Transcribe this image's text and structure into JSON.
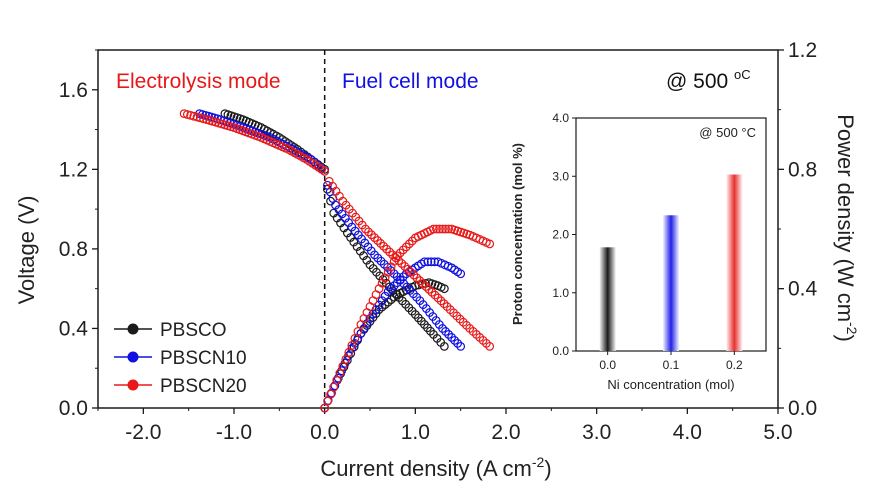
{
  "chart_data": [
    {
      "type": "line",
      "xlabel": "Current density (A cm",
      "xlabel_sup": "-2",
      "xlabel_end": ")",
      "ylabel": "Voltage (V)",
      "y2label": "Power density (W cm",
      "y2label_sup": "-2",
      "y2label_end": ")",
      "xlim": [
        -2.5,
        5.0
      ],
      "ylim": [
        0.0,
        1.8
      ],
      "y2lim": [
        0.0,
        1.2
      ],
      "x_ticks": [
        "-2.0",
        "-1.0",
        "0.0",
        "1.0",
        "2.0",
        "3.0",
        "4.0",
        "5.0"
      ],
      "y_ticks": [
        "0.0",
        "0.4",
        "0.8",
        "1.2",
        "1.6"
      ],
      "y2_ticks": [
        "0.0",
        "0.4",
        "0.8",
        "1.2"
      ],
      "annotations": {
        "left_mode": "Electrolysis mode",
        "right_mode": "Fuel cell mode",
        "temperature": "@ 500 ",
        "temperature_unit": "oC"
      },
      "legend_position": "bottom-left",
      "series": [
        {
          "name": "PBSCO",
          "color": "#1a1a1a",
          "iv": [
            [
              -1.1,
              1.48
            ],
            [
              -0.9,
              1.45
            ],
            [
              -0.7,
              1.41
            ],
            [
              -0.5,
              1.36
            ],
            [
              -0.3,
              1.3
            ],
            [
              -0.15,
              1.25
            ],
            [
              0.0,
              1.2
            ],
            [
              0.03,
              1.1
            ],
            [
              0.1,
              0.98
            ],
            [
              0.25,
              0.88
            ],
            [
              0.5,
              0.72
            ],
            [
              0.75,
              0.59
            ],
            [
              1.0,
              0.47
            ],
            [
              1.2,
              0.37
            ],
            [
              1.32,
              0.31
            ]
          ],
          "power": [
            [
              0.0,
              0.0
            ],
            [
              0.1,
              0.07
            ],
            [
              0.25,
              0.16
            ],
            [
              0.4,
              0.25
            ],
            [
              0.6,
              0.33
            ],
            [
              0.8,
              0.38
            ],
            [
              1.0,
              0.41
            ],
            [
              1.15,
              0.42
            ],
            [
              1.25,
              0.41
            ],
            [
              1.32,
              0.4
            ]
          ]
        },
        {
          "name": "PBSCN10",
          "color": "#1010e0",
          "iv": [
            [
              -1.38,
              1.48
            ],
            [
              -1.15,
              1.45
            ],
            [
              -0.9,
              1.41
            ],
            [
              -0.6,
              1.36
            ],
            [
              -0.35,
              1.3
            ],
            [
              -0.15,
              1.25
            ],
            [
              0.0,
              1.19
            ],
            [
              0.03,
              1.12
            ],
            [
              0.12,
              1.02
            ],
            [
              0.3,
              0.91
            ],
            [
              0.55,
              0.77
            ],
            [
              0.8,
              0.66
            ],
            [
              1.05,
              0.54
            ],
            [
              1.3,
              0.4
            ],
            [
              1.5,
              0.31
            ]
          ],
          "power": [
            [
              0.0,
              0.0
            ],
            [
              0.15,
              0.1
            ],
            [
              0.3,
              0.2
            ],
            [
              0.5,
              0.3
            ],
            [
              0.7,
              0.39
            ],
            [
              0.9,
              0.45
            ],
            [
              1.1,
              0.49
            ],
            [
              1.25,
              0.49
            ],
            [
              1.4,
              0.47
            ],
            [
              1.5,
              0.45
            ]
          ]
        },
        {
          "name": "PBSCN20",
          "color": "#e81818",
          "iv": [
            [
              -1.55,
              1.48
            ],
            [
              -1.3,
              1.45
            ],
            [
              -1.0,
              1.41
            ],
            [
              -0.7,
              1.36
            ],
            [
              -0.4,
              1.3
            ],
            [
              -0.2,
              1.25
            ],
            [
              0.0,
              1.19
            ],
            [
              0.05,
              1.14
            ],
            [
              0.2,
              1.04
            ],
            [
              0.45,
              0.9
            ],
            [
              0.75,
              0.77
            ],
            [
              1.05,
              0.64
            ],
            [
              1.35,
              0.51
            ],
            [
              1.6,
              0.4
            ],
            [
              1.82,
              0.31
            ]
          ],
          "power": [
            [
              0.0,
              0.0
            ],
            [
              0.2,
              0.14
            ],
            [
              0.4,
              0.28
            ],
            [
              0.6,
              0.4
            ],
            [
              0.8,
              0.51
            ],
            [
              1.0,
              0.57
            ],
            [
              1.2,
              0.6
            ],
            [
              1.4,
              0.6
            ],
            [
              1.6,
              0.58
            ],
            [
              1.82,
              0.55
            ]
          ]
        }
      ]
    },
    {
      "type": "bar",
      "title": "@ 500 °C",
      "xlabel": "Ni concentration (mol)",
      "ylabel": "Proton concentration (mol %)",
      "categories": [
        "0.0",
        "0.1",
        "0.2"
      ],
      "values": [
        1.78,
        2.33,
        3.03
      ],
      "colors": [
        "#1a1a1a",
        "#2020e8",
        "#e83030"
      ],
      "ylim": [
        0.0,
        4.0
      ],
      "y_ticks": [
        "0.0",
        "1.0",
        "2.0",
        "3.0",
        "4.0"
      ]
    }
  ]
}
